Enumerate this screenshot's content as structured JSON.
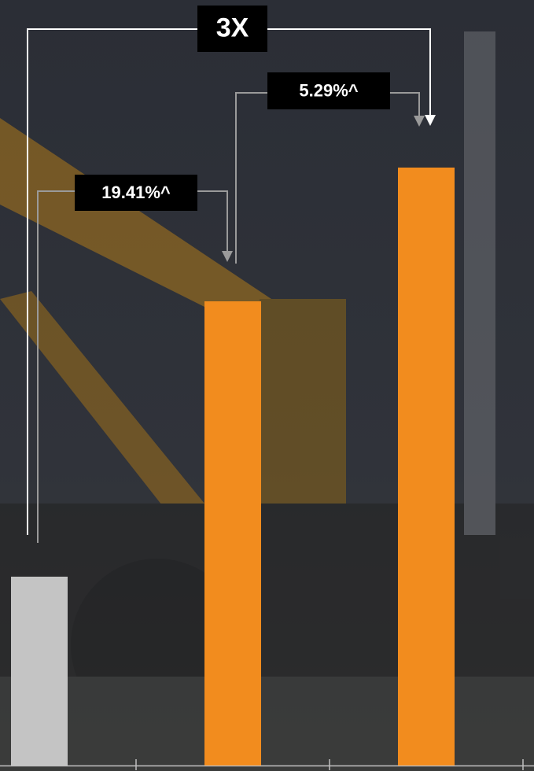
{
  "chart_data": {
    "type": "bar",
    "categories": [
      null,
      null,
      null
    ],
    "values": [
      24,
      59,
      76
    ],
    "colors": [
      "#c4c4c4",
      "#f28c1e",
      "#f28c1e"
    ],
    "annotations": [
      {
        "text": "3X",
        "from": 0,
        "to": 2
      },
      {
        "text": "19.41%^",
        "from": 0,
        "to": 1
      },
      {
        "text": "5.29%^",
        "from": 1,
        "to": 2
      }
    ]
  }
}
